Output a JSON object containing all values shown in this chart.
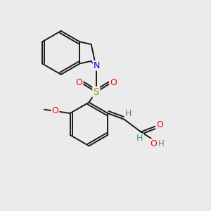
{
  "background_color": "#ebebeb",
  "atom_colors": {
    "N": "#0000ff",
    "O": "#ff0000",
    "S": "#999900",
    "C": "#000000",
    "H": "#4a9090"
  },
  "bond_color": "#1a1a1a",
  "bond_width": 1.4,
  "figsize": [
    3.0,
    3.0
  ],
  "dpi": 100
}
